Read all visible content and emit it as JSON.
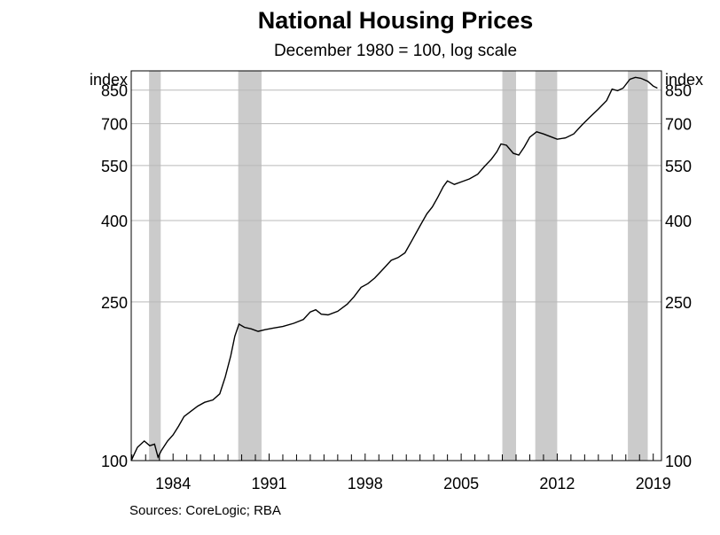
{
  "header": {
    "title": "National Housing Prices",
    "subtitle": "December 1980 = 100, log scale"
  },
  "footer": {
    "sources": "Sources:  CoreLogic; RBA"
  },
  "chart_data": {
    "type": "line",
    "title": "National Housing Prices",
    "subtitle": "December 1980 = 100, log scale",
    "ylabel_left": "index",
    "ylabel_right": "index",
    "log_scale": true,
    "ylim": [
      100,
      950
    ],
    "yticks": [
      100,
      250,
      400,
      550,
      700,
      850
    ],
    "xlim": [
      1980.95,
      2019.6
    ],
    "xticks": [
      1984,
      1991,
      1998,
      2005,
      2012,
      2019
    ],
    "grid": true,
    "colors": {
      "line": "#000000",
      "grid": "#b9b9b9",
      "recession": "#cbcbcb"
    },
    "shaded_periods": [
      {
        "start": 1982.25,
        "end": 1983.1
      },
      {
        "start": 1988.75,
        "end": 1990.45
      },
      {
        "start": 2008.0,
        "end": 2009.0
      },
      {
        "start": 2010.4,
        "end": 2012.0
      },
      {
        "start": 2017.15,
        "end": 2018.6
      }
    ],
    "series": [
      {
        "values": [
          [
            1980.95,
            100
          ],
          [
            1981.4,
            108
          ],
          [
            1981.9,
            112
          ],
          [
            1982.3,
            109
          ],
          [
            1982.65,
            110
          ],
          [
            1982.9,
            102
          ],
          [
            1983.15,
            106
          ],
          [
            1983.6,
            112
          ],
          [
            1984.0,
            116
          ],
          [
            1984.4,
            122
          ],
          [
            1984.8,
            129
          ],
          [
            1985.3,
            133
          ],
          [
            1985.8,
            137
          ],
          [
            1986.3,
            140
          ],
          [
            1986.9,
            142
          ],
          [
            1987.4,
            147
          ],
          [
            1987.8,
            162
          ],
          [
            1988.2,
            183
          ],
          [
            1988.5,
            205
          ],
          [
            1988.8,
            220
          ],
          [
            1989.2,
            216
          ],
          [
            1989.7,
            214
          ],
          [
            1990.2,
            211
          ],
          [
            1990.7,
            213
          ],
          [
            1991.3,
            215
          ],
          [
            1992.0,
            217
          ],
          [
            1992.8,
            221
          ],
          [
            1993.5,
            226
          ],
          [
            1994.0,
            236
          ],
          [
            1994.4,
            239
          ],
          [
            1994.8,
            233
          ],
          [
            1995.3,
            232
          ],
          [
            1996.0,
            237
          ],
          [
            1996.7,
            247
          ],
          [
            1997.2,
            258
          ],
          [
            1997.7,
            272
          ],
          [
            1998.2,
            278
          ],
          [
            1998.7,
            287
          ],
          [
            1999.3,
            302
          ],
          [
            1999.9,
            318
          ],
          [
            2000.4,
            323
          ],
          [
            2000.9,
            332
          ],
          [
            2001.4,
            356
          ],
          [
            2002.0,
            388
          ],
          [
            2002.5,
            416
          ],
          [
            2002.9,
            433
          ],
          [
            2003.3,
            458
          ],
          [
            2003.7,
            487
          ],
          [
            2004.0,
            503
          ],
          [
            2004.5,
            493
          ],
          [
            2005.0,
            500
          ],
          [
            2005.6,
            509
          ],
          [
            2006.2,
            523
          ],
          [
            2006.7,
            547
          ],
          [
            2007.2,
            570
          ],
          [
            2007.6,
            595
          ],
          [
            2007.9,
            623
          ],
          [
            2008.3,
            618
          ],
          [
            2008.8,
            590
          ],
          [
            2009.2,
            584
          ],
          [
            2009.6,
            612
          ],
          [
            2010.0,
            648
          ],
          [
            2010.5,
            668
          ],
          [
            2011.0,
            660
          ],
          [
            2011.5,
            650
          ],
          [
            2012.0,
            640
          ],
          [
            2012.6,
            645
          ],
          [
            2013.2,
            660
          ],
          [
            2013.8,
            695
          ],
          [
            2014.4,
            728
          ],
          [
            2015.0,
            762
          ],
          [
            2015.6,
            800
          ],
          [
            2016.0,
            855
          ],
          [
            2016.4,
            847
          ],
          [
            2016.8,
            860
          ],
          [
            2017.3,
            905
          ],
          [
            2017.7,
            915
          ],
          [
            2018.1,
            910
          ],
          [
            2018.6,
            895
          ],
          [
            2019.0,
            870
          ],
          [
            2019.3,
            860
          ]
        ]
      }
    ]
  }
}
